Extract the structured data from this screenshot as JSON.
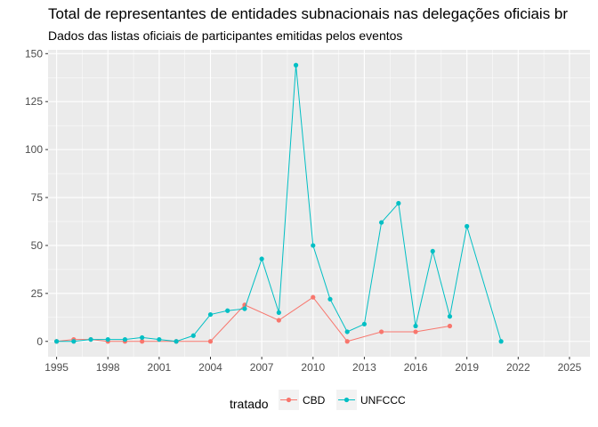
{
  "chart_data": {
    "type": "line",
    "title": "Total de representantes de entidades subnacionais nas delegações oficiais br",
    "subtitle": "Dados das listas oficiais de participantes emitidas pelos eventos",
    "xlabel": "",
    "ylabel": "",
    "xlim": [
      1994.5,
      2026.2
    ],
    "ylim": [
      -8,
      152
    ],
    "x_ticks": [
      1995,
      1998,
      2001,
      2004,
      2007,
      2010,
      2013,
      2016,
      2019,
      2022,
      2025
    ],
    "y_ticks": [
      0,
      25,
      50,
      75,
      100,
      125,
      150
    ],
    "grid": true,
    "legend_position": "bottom",
    "legend_title": "tratado",
    "series": [
      {
        "name": "CBD",
        "color": "#F8766D",
        "x": [
          1995,
          1996,
          1997,
          1998,
          1999,
          2000,
          2002,
          2004,
          2006,
          2008,
          2010,
          2012,
          2014,
          2016,
          2018
        ],
        "y": [
          0,
          1,
          1,
          0,
          0,
          0,
          0,
          0,
          19,
          11,
          23,
          0,
          5,
          5,
          8
        ]
      },
      {
        "name": "UNFCCC",
        "color": "#00BFC4",
        "x": [
          1995,
          1996,
          1997,
          1998,
          1999,
          2000,
          2001,
          2002,
          2003,
          2004,
          2005,
          2006,
          2007,
          2008,
          2009,
          2010,
          2011,
          2012,
          2013,
          2014,
          2015,
          2016,
          2017,
          2018,
          2019,
          2021
        ],
        "y": [
          0,
          0,
          1,
          1,
          1,
          2,
          1,
          0,
          3,
          14,
          16,
          17,
          43,
          15,
          144,
          50,
          22,
          5,
          9,
          62,
          72,
          8,
          47,
          13,
          60,
          0
        ]
      }
    ]
  }
}
